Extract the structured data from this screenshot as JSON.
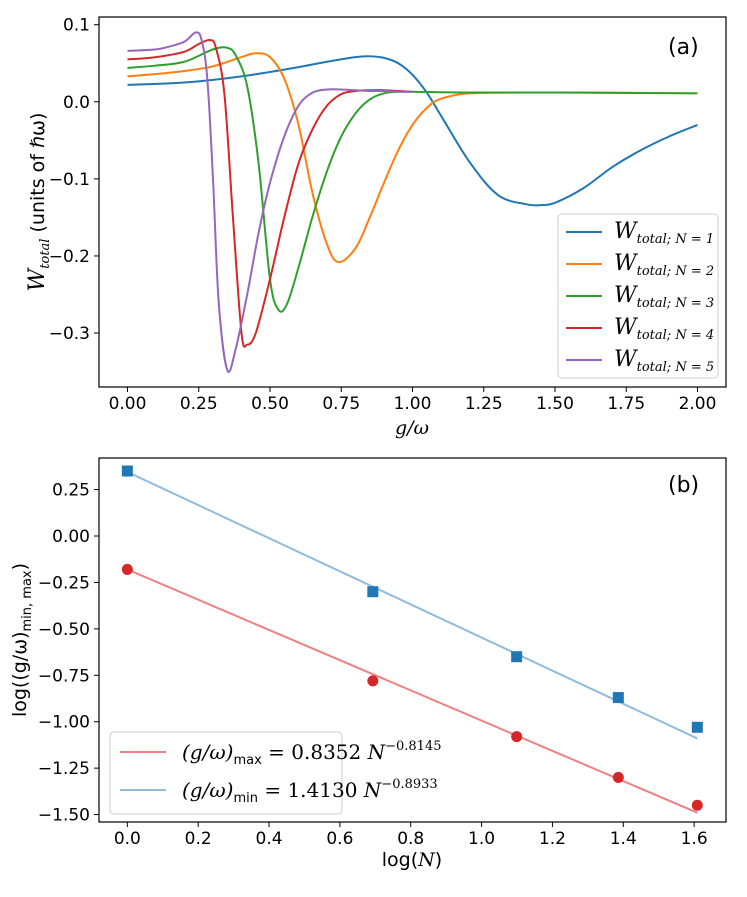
{
  "chart_data": [
    {
      "type": "line",
      "panel_label": "(a)",
      "xlabel_main": "g",
      "xlabel_rest": "/ω",
      "ylabel_main": "W",
      "ylabel_sub": "total",
      "ylabel_rest": " (units of ℏω)",
      "xlim": [
        -0.1,
        2.1
      ],
      "ylim": [
        -0.37,
        0.11
      ],
      "xticks": [
        "0.00",
        "0.25",
        "0.50",
        "0.75",
        "1.00",
        "1.25",
        "1.50",
        "1.75",
        "2.00"
      ],
      "yticks": [
        "−0.3",
        "−0.2",
        "−0.1",
        "0.0",
        "0.1"
      ],
      "legend_position": "lower-right",
      "series": [
        {
          "name": "W",
          "sub": "total; N = 1",
          "color": "#1f77b4",
          "x": [
            0.0,
            0.2,
            0.4,
            0.6,
            0.7,
            0.8,
            0.85,
            0.9,
            0.95,
            1.0,
            1.05,
            1.1,
            1.2,
            1.3,
            1.4,
            1.45,
            1.5,
            1.6,
            1.7,
            1.8,
            1.9,
            2.0
          ],
          "y": [
            0.022,
            0.025,
            0.033,
            0.045,
            0.052,
            0.058,
            0.059,
            0.057,
            0.05,
            0.035,
            0.012,
            -0.018,
            -0.078,
            -0.121,
            -0.133,
            -0.134,
            -0.131,
            -0.112,
            -0.085,
            -0.063,
            -0.045,
            -0.03
          ]
        },
        {
          "name": "W",
          "sub": "total; N = 2",
          "color": "#ff7f0e",
          "x": [
            0.0,
            0.1,
            0.2,
            0.3,
            0.4,
            0.45,
            0.5,
            0.55,
            0.6,
            0.65,
            0.7,
            0.74,
            0.8,
            0.85,
            0.9,
            0.95,
            1.0,
            1.05,
            1.1,
            1.2,
            1.4,
            1.6,
            2.0
          ],
          "y": [
            0.033,
            0.036,
            0.04,
            0.046,
            0.058,
            0.063,
            0.058,
            0.03,
            -0.03,
            -0.12,
            -0.185,
            -0.208,
            -0.19,
            -0.15,
            -0.105,
            -0.063,
            -0.03,
            -0.008,
            0.004,
            0.011,
            0.012,
            0.012,
            0.011
          ]
        },
        {
          "name": "W",
          "sub": "total; N = 3",
          "color": "#2ca02c",
          "x": [
            0.0,
            0.1,
            0.2,
            0.3,
            0.35,
            0.38,
            0.42,
            0.46,
            0.5,
            0.53,
            0.56,
            0.6,
            0.65,
            0.7,
            0.75,
            0.8,
            0.85,
            0.9,
            0.95,
            1.0,
            1.2,
            1.5,
            2.0
          ],
          "y": [
            0.044,
            0.047,
            0.052,
            0.068,
            0.07,
            0.06,
            0.02,
            -0.08,
            -0.23,
            -0.27,
            -0.262,
            -0.215,
            -0.148,
            -0.09,
            -0.045,
            -0.015,
            0.003,
            0.011,
            0.013,
            0.013,
            0.012,
            0.012,
            0.011
          ]
        },
        {
          "name": "W",
          "sub": "total; N = 4",
          "color": "#d62728",
          "x": [
            0.0,
            0.1,
            0.2,
            0.25,
            0.29,
            0.31,
            0.34,
            0.37,
            0.4,
            0.42,
            0.45,
            0.5,
            0.55,
            0.6,
            0.65,
            0.7,
            0.75,
            0.8,
            0.85,
            0.9,
            0.95,
            1.0
          ],
          "y": [
            0.055,
            0.058,
            0.065,
            0.075,
            0.08,
            0.07,
            0.01,
            -0.15,
            -0.3,
            -0.315,
            -0.3,
            -0.23,
            -0.15,
            -0.08,
            -0.035,
            -0.005,
            0.01,
            0.014,
            0.015,
            0.015,
            0.014,
            0.013
          ]
        },
        {
          "name": "W",
          "sub": "total; N = 5",
          "color": "#9467bd",
          "x": [
            0.0,
            0.1,
            0.15,
            0.2,
            0.24,
            0.26,
            0.28,
            0.3,
            0.32,
            0.35,
            0.38,
            0.42,
            0.46,
            0.5,
            0.55,
            0.6,
            0.65,
            0.7,
            0.75,
            0.8,
            0.85,
            0.9,
            0.95,
            1.0
          ],
          "y": [
            0.066,
            0.068,
            0.072,
            0.078,
            0.09,
            0.08,
            0.03,
            -0.1,
            -0.26,
            -0.348,
            -0.32,
            -0.25,
            -0.17,
            -0.105,
            -0.045,
            -0.005,
            0.012,
            0.016,
            0.016,
            0.015,
            0.014,
            0.014,
            0.013,
            0.013
          ]
        }
      ]
    },
    {
      "type": "scatter",
      "panel_label": "(b)",
      "xlabel_main": "log(",
      "xlabel_it": "N",
      "xlabel_rest": ")",
      "ylabel": "log((g/ω)",
      "ylabel_sub": "min, max",
      "ylabel_end": ")",
      "xlim": [
        -0.08,
        1.69
      ],
      "ylim": [
        -1.54,
        0.42
      ],
      "xticks": [
        "0.0",
        "0.2",
        "0.4",
        "0.6",
        "0.8",
        "1.0",
        "1.2",
        "1.4",
        "1.6"
      ],
      "yticks": [
        "−1.50",
        "−1.25",
        "−1.00",
        "−0.75",
        "−0.50",
        "−0.25",
        "0.00",
        "0.25"
      ],
      "legend_position": "lower-left",
      "points": {
        "max": {
          "x": [
            0.0,
            0.693,
            1.099,
            1.386,
            1.609
          ],
          "y": [
            -0.18,
            -0.78,
            -1.08,
            -1.3,
            -1.45
          ],
          "color": "#d62728",
          "marker": "circle"
        },
        "min": {
          "x": [
            0.0,
            0.693,
            1.099,
            1.386,
            1.609
          ],
          "y": [
            0.35,
            -0.3,
            -0.65,
            -0.87,
            -1.03
          ],
          "color": "#1f77b4",
          "marker": "square"
        }
      },
      "fits": [
        {
          "label_prefix": "(g/ω)",
          "label_sub": "max",
          "label_mid": " = 0.8352 ",
          "label_N": "N",
          "label_sup": "−0.8145",
          "color": "#f08080",
          "x": [
            0.0,
            1.609
          ],
          "y": [
            -0.18,
            -1.49
          ]
        },
        {
          "label_prefix": "(g/ω)",
          "label_sub": "min",
          "label_mid": " = 1.4130 ",
          "label_N": "N",
          "label_sup": "−0.8933",
          "color": "#8fbbdf",
          "x": [
            0.0,
            1.609
          ],
          "y": [
            0.345,
            -1.09
          ]
        }
      ]
    }
  ]
}
